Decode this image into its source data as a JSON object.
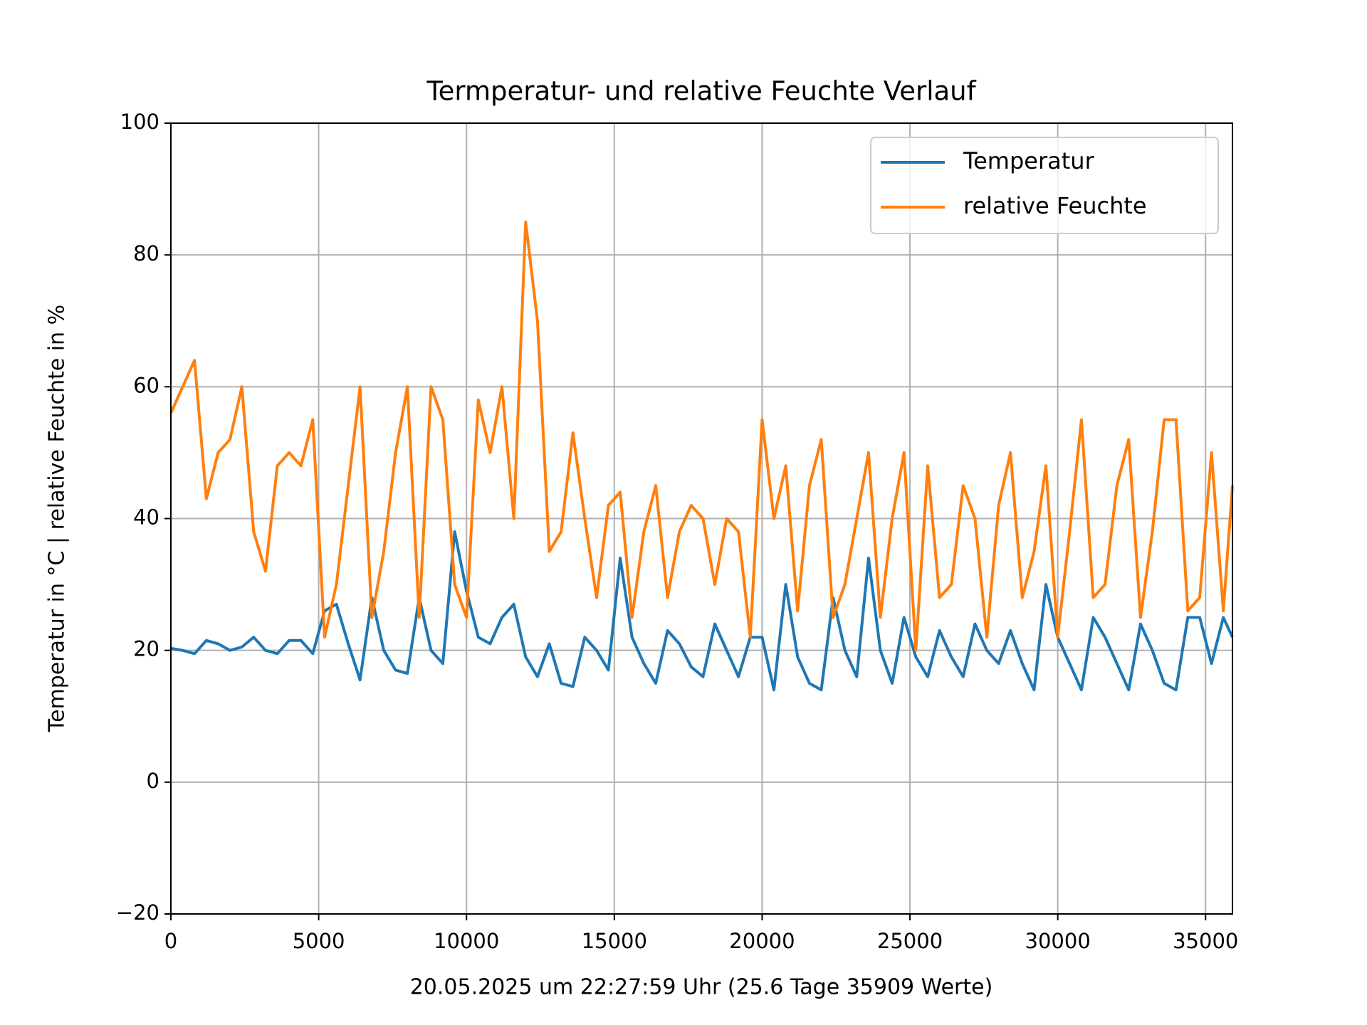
{
  "chart_data": {
    "type": "line",
    "title": "Termperatur- und relative Feuchte Verlauf",
    "x_label": "20.05.2025 um 22:27:59 Uhr (25.6 Tage 35909 Werte)",
    "y_label": "Temperatur in °C | relative Feuchte in %",
    "x": [
      0,
      400,
      800,
      1200,
      1600,
      2000,
      2400,
      2800,
      3200,
      3600,
      4000,
      4400,
      4800,
      5200,
      5600,
      6000,
      6400,
      6800,
      7200,
      7600,
      8000,
      8400,
      8800,
      9200,
      9600,
      10000,
      10400,
      10800,
      11200,
      11600,
      12000,
      12400,
      12800,
      13200,
      13600,
      14000,
      14400,
      14800,
      15200,
      15600,
      16000,
      16400,
      16800,
      17200,
      17600,
      18000,
      18400,
      18800,
      19200,
      19600,
      20000,
      20400,
      20800,
      21200,
      21600,
      22000,
      22400,
      22800,
      23200,
      23600,
      24000,
      24400,
      24800,
      25200,
      25600,
      26000,
      26400,
      26800,
      27200,
      27600,
      28000,
      28400,
      28800,
      29200,
      29600,
      30000,
      30400,
      30800,
      31200,
      31600,
      32000,
      32400,
      32800,
      33200,
      33600,
      34000,
      34400,
      34800,
      35200,
      35600,
      35909
    ],
    "series": [
      {
        "name": "Temperatur",
        "color": "#1f77b4",
        "values": [
          20.3,
          20,
          19.5,
          21.5,
          21,
          20,
          20.5,
          22,
          20,
          19.5,
          21.5,
          21.5,
          19.5,
          26,
          27,
          21,
          15.5,
          28,
          20,
          17,
          16.5,
          28,
          20,
          18,
          38,
          29,
          22,
          21,
          25,
          27,
          19,
          16,
          21,
          15,
          14.5,
          22,
          20,
          17,
          34,
          22,
          18,
          15,
          23,
          21,
          17.5,
          16,
          24,
          20,
          16,
          22,
          22,
          14,
          30,
          19,
          15,
          14,
          28,
          20,
          16,
          34,
          20,
          15,
          25,
          19,
          16,
          23,
          19,
          16,
          24,
          20,
          18,
          23,
          18,
          14,
          30,
          22,
          18,
          14,
          25,
          22,
          18,
          14,
          24,
          20,
          15,
          14,
          25,
          25,
          18,
          25,
          22
        ]
      },
      {
        "name": "relative Feuchte",
        "color": "#ff7f0e",
        "values": [
          56,
          60,
          64,
          43,
          50,
          52,
          60,
          38,
          32,
          48,
          50,
          48,
          55,
          22,
          30,
          45,
          60,
          25,
          35,
          50,
          60,
          25,
          60,
          55,
          30,
          25,
          58,
          50,
          60,
          40,
          85,
          70,
          35,
          38,
          53,
          40,
          28,
          42,
          44,
          25,
          38,
          45,
          28,
          38,
          42,
          40,
          30,
          40,
          38,
          22,
          55,
          40,
          48,
          26,
          45,
          52,
          25,
          30,
          40,
          50,
          25,
          40,
          50,
          20,
          48,
          28,
          30,
          45,
          40,
          22,
          42,
          50,
          28,
          35,
          48,
          22,
          38,
          55,
          28,
          30,
          45,
          52,
          25,
          38,
          55,
          55,
          26,
          28,
          50,
          26,
          45
        ]
      }
    ],
    "xlim": [
      0,
      35909
    ],
    "ylim": [
      -20,
      100
    ],
    "xticks": [
      0,
      5000,
      10000,
      15000,
      20000,
      25000,
      30000,
      35000
    ],
    "yticks": [
      {
        "value": -20,
        "label": "−20"
      },
      0,
      20,
      40,
      60,
      80,
      100
    ],
    "grid": true,
    "legend": "upper right"
  }
}
